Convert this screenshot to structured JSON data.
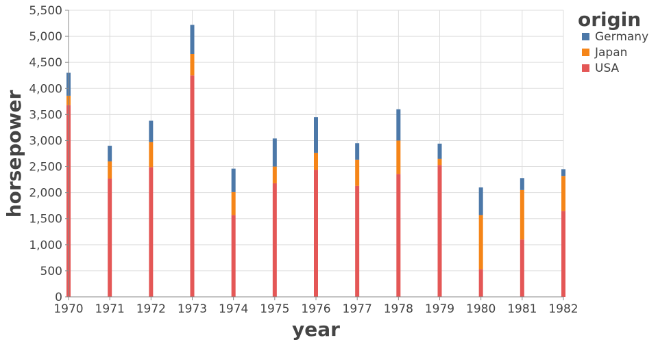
{
  "chart_data": {
    "type": "bar",
    "stacked": true,
    "xlabel": "year",
    "ylabel": "horsepower",
    "ylim": [
      0,
      5500
    ],
    "yticks": [
      0,
      500,
      1000,
      1500,
      2000,
      2500,
      3000,
      3500,
      4000,
      4500,
      5000,
      5500
    ],
    "ytick_labels": [
      "0",
      "500",
      "1,000",
      "1,500",
      "2,000",
      "2,500",
      "3,000",
      "3,500",
      "4,000",
      "4,500",
      "5,000",
      "5,500"
    ],
    "categories": [
      "1970",
      "1971",
      "1972",
      "1973",
      "1974",
      "1975",
      "1976",
      "1977",
      "1978",
      "1979",
      "1980",
      "1981",
      "1982"
    ],
    "grid": true,
    "legend": {
      "title": "origin",
      "position": "top-right"
    },
    "series": [
      {
        "name": "USA",
        "color": "#e45756",
        "values": [
          3680,
          2270,
          2490,
          4250,
          1570,
          2180,
          2440,
          2130,
          2360,
          2530,
          530,
          1100,
          1650
        ]
      },
      {
        "name": "Japan",
        "color": "#f58518",
        "values": [
          180,
          330,
          480,
          410,
          440,
          320,
          320,
          500,
          640,
          120,
          1040,
          950,
          670
        ]
      },
      {
        "name": "Germany",
        "color": "#4c78a8",
        "values": [
          440,
          300,
          410,
          560,
          450,
          540,
          690,
          320,
          600,
          290,
          530,
          230,
          130
        ]
      }
    ],
    "legend_order": [
      "Germany",
      "Japan",
      "USA"
    ]
  }
}
